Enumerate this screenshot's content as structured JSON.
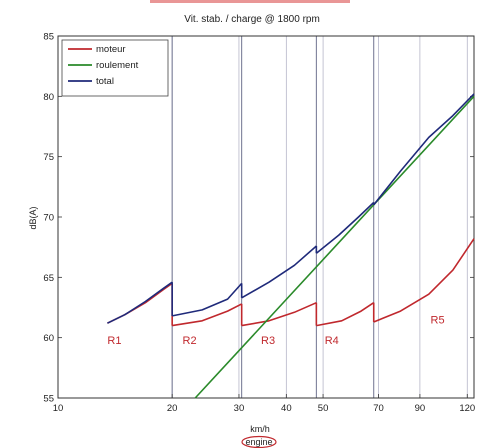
{
  "chart_data": {
    "type": "line",
    "title": "Vit. stab. /  charge @ 1800 rpm",
    "xlabel": "km/h",
    "xlabel_note": "engine",
    "ylabel": "dB(A)",
    "xscale": "log",
    "xlim": [
      10,
      125
    ],
    "ylim": [
      55,
      85
    ],
    "xticks": [
      10,
      20,
      30,
      40,
      50,
      70,
      90,
      120
    ],
    "yticks": [
      55,
      60,
      65,
      70,
      75,
      80,
      85
    ],
    "grid": "vertical",
    "vlines": [
      20,
      30.5,
      48,
      68
    ],
    "legend": "top-left",
    "series": [
      {
        "name": "moteur",
        "color": "#c0282d",
        "segments": [
          {
            "x": [
              13.5,
              15,
              17,
              19,
              20
            ],
            "y": [
              61.2,
              61.9,
              62.9,
              64.0,
              64.5
            ]
          },
          {
            "x": [
              20,
              24,
              28,
              30.5
            ],
            "y": [
              61.0,
              61.4,
              62.2,
              62.8
            ]
          },
          {
            "x": [
              30.5,
              36,
              42,
              48
            ],
            "y": [
              61.0,
              61.4,
              62.1,
              62.9
            ]
          },
          {
            "x": [
              48,
              56,
              63,
              68
            ],
            "y": [
              61.0,
              61.4,
              62.2,
              62.9
            ]
          },
          {
            "x": [
              68,
              80,
              95,
              110,
              125
            ],
            "y": [
              61.3,
              62.2,
              63.6,
              65.6,
              68.2
            ]
          }
        ]
      },
      {
        "name": "roulement",
        "color": "#2a8a2a",
        "segments": [
          {
            "x": [
              23,
              125
            ],
            "y": [
              55,
              80
            ]
          }
        ]
      },
      {
        "name": "total",
        "color": "#1f2a7a",
        "segments": [
          {
            "x": [
              13.5,
              15,
              17,
              19,
              20
            ],
            "y": [
              61.2,
              61.9,
              63.0,
              64.1,
              64.6
            ]
          },
          {
            "x": [
              20,
              24,
              28,
              30.5
            ],
            "y": [
              61.8,
              62.3,
              63.2,
              64.5
            ]
          },
          {
            "x": [
              30.5,
              36,
              42,
              48
            ],
            "y": [
              63.3,
              64.6,
              66.0,
              67.6
            ]
          },
          {
            "x": [
              48,
              55,
              62,
              68
            ],
            "y": [
              67.0,
              68.5,
              70.0,
              71.2
            ]
          },
          {
            "x": [
              68,
              80,
              95,
              110,
              125
            ],
            "y": [
              71.0,
              73.8,
              76.6,
              78.4,
              80.2
            ]
          }
        ]
      }
    ],
    "region_labels": [
      {
        "text": "R1",
        "x": 13.5,
        "y": 59.8
      },
      {
        "text": "R2",
        "x": 21.3,
        "y": 59.8
      },
      {
        "text": "R3",
        "x": 34.3,
        "y": 59.8
      },
      {
        "text": "R4",
        "x": 50.5,
        "y": 59.8
      },
      {
        "text": "R5",
        "x": 96,
        "y": 61.5
      }
    ]
  }
}
